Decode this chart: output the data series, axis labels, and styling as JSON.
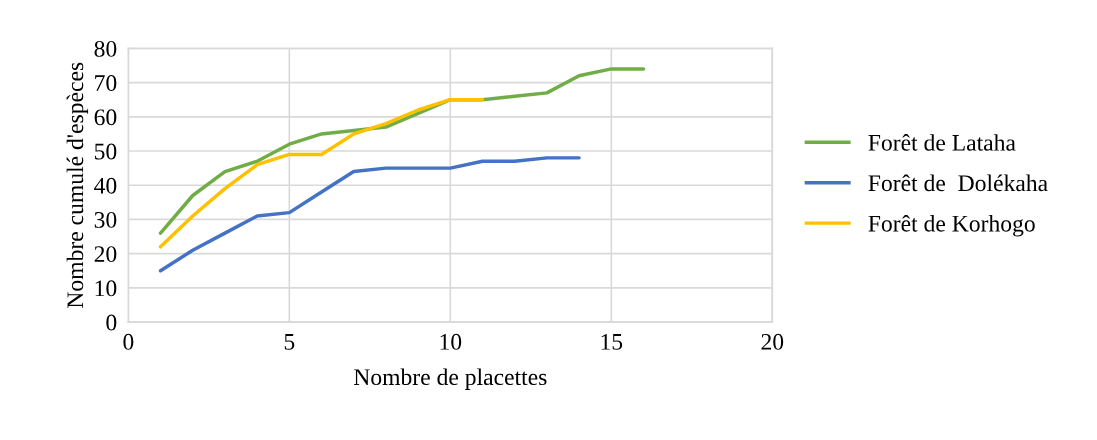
{
  "chart_data": {
    "type": "line",
    "xlabel": "Nombre de placettes",
    "ylabel": "Nombre cumulé d'espèces",
    "xlim": [
      0,
      20
    ],
    "xticks": [
      0,
      5,
      10,
      15,
      20
    ],
    "ylim": [
      0,
      80
    ],
    "yticks": [
      0,
      10,
      20,
      30,
      40,
      50,
      60,
      70,
      80
    ],
    "grid": true,
    "legend": "right",
    "marker": "none",
    "line_style": "solid",
    "series": [
      {
        "name": "Forêt de Lataha",
        "color": "#70ad47",
        "x": [
          1,
          2,
          3,
          4,
          5,
          6,
          7,
          8,
          9,
          10,
          11,
          12,
          13,
          14,
          15,
          16
        ],
        "values": [
          26,
          37,
          44,
          47,
          52,
          55,
          56,
          57,
          61,
          65,
          65,
          66,
          67,
          72,
          74,
          74
        ]
      },
      {
        "name": "Forêt de  Dolékaha",
        "color": "#4472c4",
        "x": [
          1,
          2,
          3,
          4,
          5,
          6,
          7,
          8,
          9,
          10,
          11,
          12,
          13,
          14
        ],
        "values": [
          15,
          21,
          26,
          31,
          32,
          38,
          44,
          45,
          45,
          45,
          47,
          47,
          48,
          48
        ]
      },
      {
        "name": "Forêt de Korhogo",
        "color": "#ffc000",
        "x": [
          1,
          2,
          3,
          4,
          5,
          6,
          7,
          8,
          9,
          10,
          11
        ],
        "values": [
          22,
          31,
          39,
          46,
          49,
          49,
          55,
          58,
          62,
          65,
          65
        ]
      }
    ]
  }
}
